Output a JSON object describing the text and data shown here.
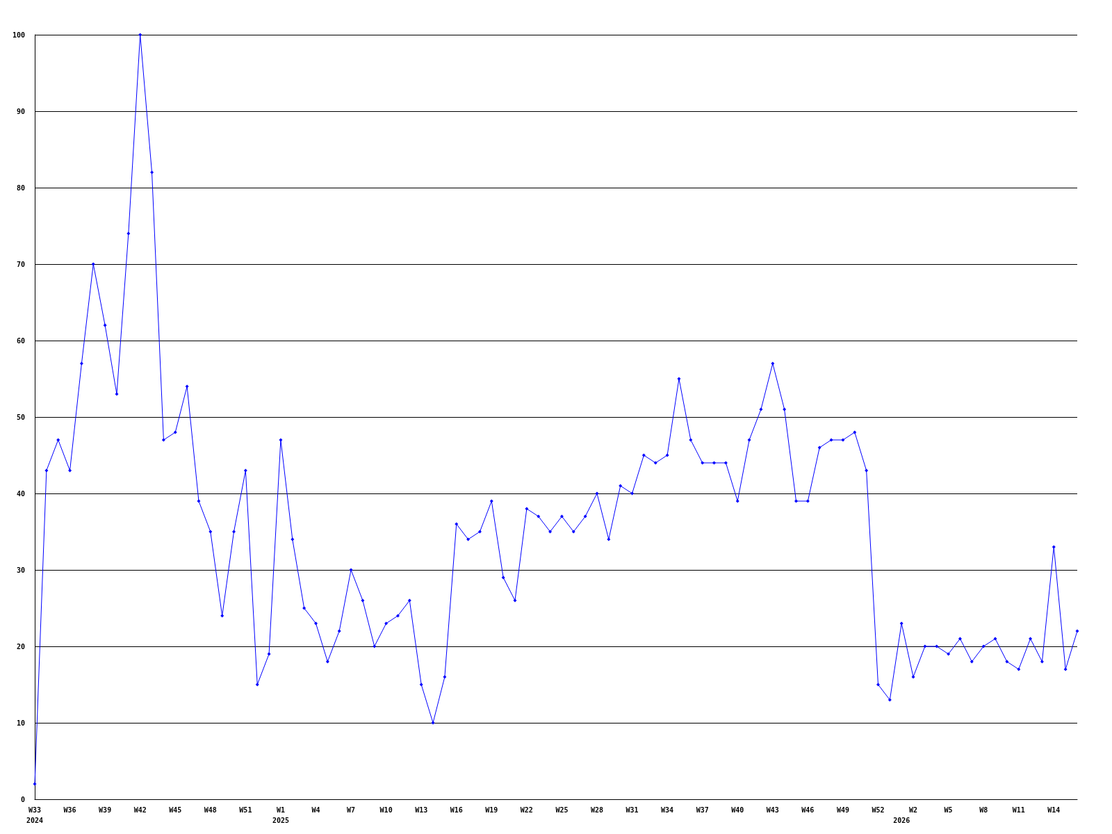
{
  "chart_data": {
    "type": "line",
    "categories": [
      "W33\n2024",
      null,
      null,
      "W36",
      null,
      null,
      "W39",
      null,
      null,
      "W42",
      null,
      null,
      "W45",
      null,
      null,
      "W48",
      null,
      null,
      "W51",
      null,
      null,
      "W1\n2025",
      null,
      null,
      "W4",
      null,
      null,
      "W7",
      null,
      null,
      "W10",
      null,
      null,
      "W13",
      null,
      null,
      "W16",
      null,
      null,
      "W19",
      null,
      null,
      "W22",
      null,
      null,
      "W25",
      null,
      null,
      "W28",
      null,
      null,
      "W31",
      null,
      null,
      "W34",
      null,
      null,
      "W37",
      null,
      null,
      "W40",
      null,
      null,
      "W43",
      null,
      null,
      "W46",
      null,
      null,
      "W49",
      null,
      null,
      "W52",
      null,
      "\n2026",
      "W2",
      null,
      null,
      "W5",
      null,
      null,
      "W8",
      null,
      null,
      "W11",
      null,
      null,
      "W14",
      null,
      null
    ],
    "series": [
      {
        "color": "#0000ff",
        "values": [
          2,
          43,
          47,
          43,
          57,
          70,
          62,
          53,
          74,
          100,
          82,
          47,
          48,
          54,
          39,
          35,
          24,
          35,
          43,
          15,
          19,
          47,
          34,
          25,
          23,
          18,
          22,
          30,
          26,
          20,
          23,
          24,
          26,
          15,
          10,
          16,
          36,
          34,
          35,
          39,
          29,
          26,
          38,
          37,
          35,
          37,
          35,
          37,
          40,
          34,
          41,
          40,
          45,
          44,
          45,
          55,
          47,
          44,
          44,
          44,
          39,
          47,
          51,
          57,
          51,
          39,
          39,
          46,
          47,
          47,
          48,
          43,
          15,
          13,
          23,
          16,
          20,
          20,
          19,
          21,
          18,
          20,
          21,
          18,
          17,
          21,
          18,
          33,
          17,
          22
        ]
      }
    ],
    "ylim": [
      0,
      100
    ],
    "yticks": [
      0,
      10,
      20,
      30,
      40,
      50,
      60,
      70,
      80,
      90,
      100
    ],
    "grid": "y",
    "marker": "diamond",
    "line_style": "solid"
  }
}
